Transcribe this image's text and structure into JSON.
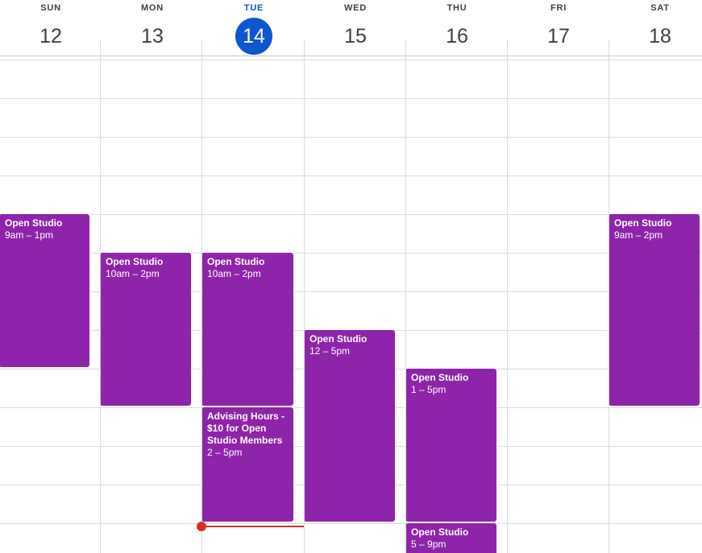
{
  "days": [
    {
      "dow": "SUN",
      "num": "12"
    },
    {
      "dow": "MON",
      "num": "13"
    },
    {
      "dow": "TUE",
      "num": "14"
    },
    {
      "dow": "WED",
      "num": "15"
    },
    {
      "dow": "THU",
      "num": "16"
    },
    {
      "dow": "FRI",
      "num": "17"
    },
    {
      "dow": "SAT",
      "num": "18"
    }
  ],
  "today_index": 2,
  "events": [
    {
      "title": "Open Studio",
      "time": "9am – 1pm"
    },
    {
      "title": "Open Studio",
      "time": "10am – 2pm"
    },
    {
      "title": "Open Studio",
      "time": "10am – 2pm"
    },
    {
      "title": "Advising Hours - $10 for Open Studio Members",
      "time": "2 – 5pm"
    },
    {
      "title": "Open Studio",
      "time": "12 – 5pm"
    },
    {
      "title": "Open Studio",
      "time": "1 – 5pm"
    },
    {
      "title": "Open Studio",
      "time": "5 – 9pm"
    },
    {
      "title": "Open Studio",
      "time": "9am – 2pm"
    }
  ],
  "colors": {
    "event": "#8e24aa",
    "today": "#0b57d0",
    "now_indicator": "#d93025"
  }
}
